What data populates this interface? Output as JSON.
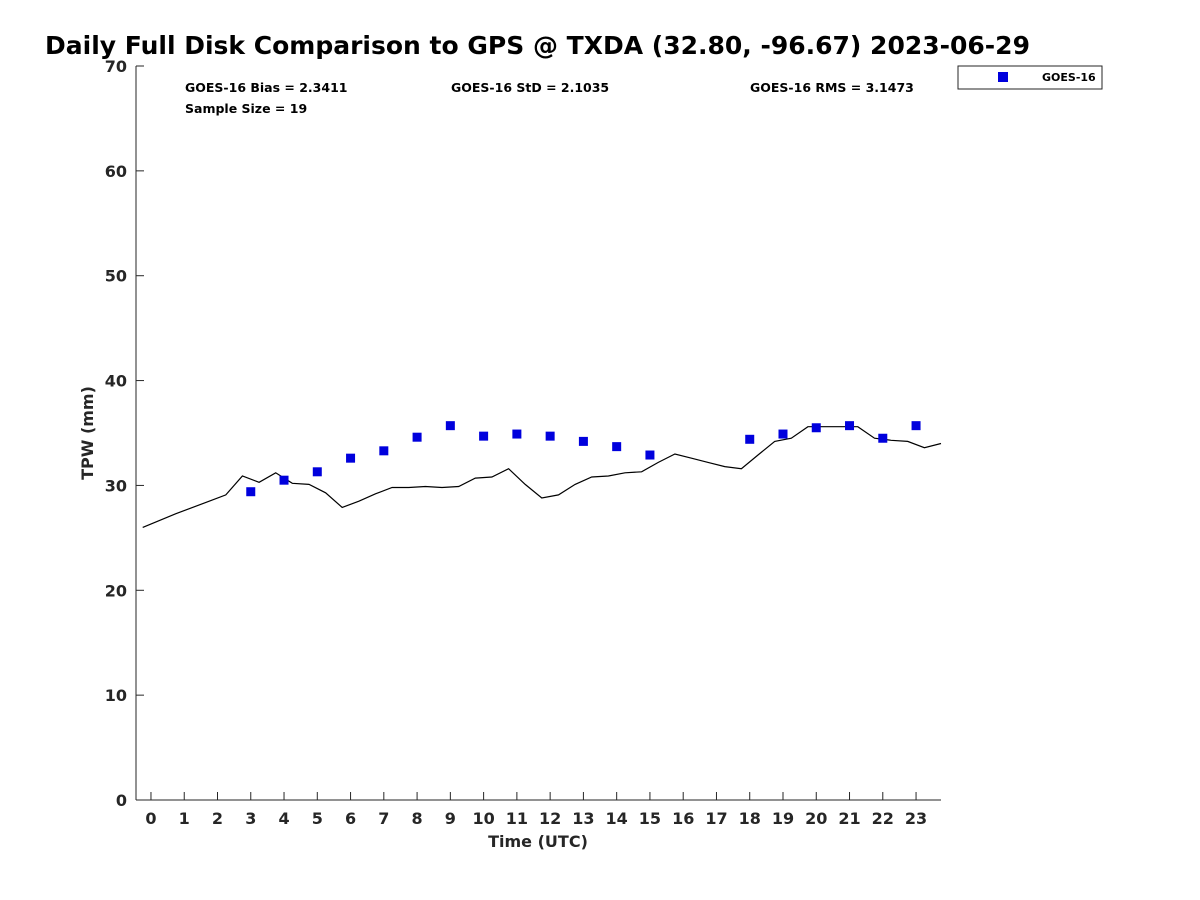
{
  "chart_data": {
    "type": "scatter",
    "title": "Daily Full Disk Comparison to GPS @ TXDA (32.80, -96.67) 2023-06-29",
    "xlabel": "Time (UTC)",
    "ylabel": "TPW (mm)",
    "xlim": [
      -0.45,
      23.75
    ],
    "ylim": [
      0,
      70
    ],
    "xticks": [
      0,
      1,
      2,
      3,
      4,
      5,
      6,
      7,
      8,
      9,
      10,
      11,
      12,
      13,
      14,
      15,
      16,
      17,
      18,
      19,
      20,
      21,
      22,
      23
    ],
    "yticks": [
      0,
      10,
      20,
      30,
      40,
      50,
      60,
      70
    ],
    "grid": false,
    "legend": {
      "placement": "outside top-right",
      "entries": [
        "GOES-16"
      ]
    },
    "stats": {
      "bias": "GOES-16 Bias = 2.3411",
      "std": "GOES-16 StD = 2.1035",
      "rms": "GOES-16 RMS = 3.1473",
      "sample_size": "Sample Size = 19"
    },
    "series": [
      {
        "name": "GOES-16",
        "marker": "square",
        "color": "#0000dd",
        "x": [
          3,
          4,
          5,
          6,
          7,
          8,
          9,
          10,
          11,
          12,
          13,
          14,
          15,
          18,
          19,
          20,
          21,
          22,
          23
        ],
        "y": [
          29.4,
          30.5,
          31.3,
          32.6,
          33.3,
          34.6,
          35.7,
          34.7,
          34.9,
          34.7,
          34.2,
          33.7,
          32.9,
          34.4,
          34.9,
          35.5,
          35.7,
          34.5,
          35.7
        ]
      },
      {
        "marker": "line",
        "color": "#000000",
        "x": [
          -0.25,
          0.75,
          1.75,
          2.25,
          2.75,
          3.25,
          3.75,
          4.25,
          4.75,
          5.25,
          5.75,
          6.25,
          6.75,
          7.25,
          7.75,
          8.25,
          8.75,
          9.25,
          9.75,
          10.25,
          10.75,
          11.25,
          11.75,
          12.25,
          12.75,
          13.25,
          13.75,
          14.25,
          14.75,
          15.25,
          15.75,
          16.25,
          16.75,
          17.25,
          17.75,
          18.25,
          18.75,
          19.25,
          19.75,
          20.25,
          20.75,
          21.25,
          21.75,
          22.25,
          22.75,
          23.25,
          23.75
        ],
        "y": [
          26.0,
          27.3,
          28.5,
          29.1,
          30.9,
          30.3,
          31.2,
          30.2,
          30.1,
          29.3,
          27.9,
          28.5,
          29.2,
          29.8,
          29.8,
          29.9,
          29.8,
          29.9,
          30.7,
          30.8,
          31.6,
          30.1,
          28.8,
          29.1,
          30.1,
          30.8,
          30.9,
          31.2,
          31.3,
          32.2,
          33.0,
          32.6,
          32.2,
          31.8,
          31.6,
          32.9,
          34.2,
          34.5,
          35.6,
          35.6,
          35.6,
          35.6,
          34.5,
          34.3,
          34.2,
          33.6,
          34.0
        ]
      }
    ]
  }
}
